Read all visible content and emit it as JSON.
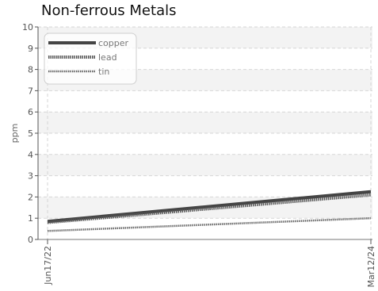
{
  "chart_data": {
    "type": "line",
    "title": "Non-ferrous Metals",
    "xlabel": "",
    "ylabel": "ppm",
    "x_ticks": [
      "Jun17/22",
      "Mar12/24"
    ],
    "ylim": [
      0,
      10
    ],
    "y_ticks": [
      "0",
      "1",
      "2",
      "3",
      "4",
      "5",
      "6",
      "7",
      "8",
      "9",
      "10"
    ],
    "grid": true,
    "legend_position": "top-left",
    "series": [
      {
        "name": "copper",
        "color": "#444444",
        "style": "solid",
        "points": [
          {
            "x": "Jun17/22",
            "y": 0.85
          },
          {
            "x": "Mar12/24",
            "y": 2.25
          }
        ]
      },
      {
        "name": "lead",
        "color": "#555555",
        "style": "dotted-thick",
        "points": [
          {
            "x": "Jun17/22",
            "y": 0.8
          },
          {
            "x": "Mar12/24",
            "y": 2.1
          }
        ]
      },
      {
        "name": "tin",
        "color": "#666666",
        "style": "dotted-thin",
        "points": [
          {
            "x": "Jun17/22",
            "y": 0.4
          },
          {
            "x": "Mar12/24",
            "y": 1.0
          }
        ]
      }
    ]
  }
}
